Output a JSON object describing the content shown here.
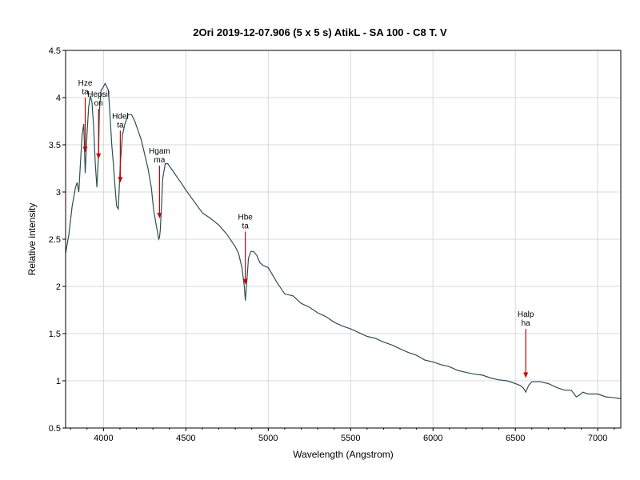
{
  "chart_data": {
    "type": "line",
    "title": "2Ori   2019-12-07.906   (5 x 5 s)  AtikL - SA 100 - C8 T. V",
    "xlabel": "Wavelength (Angstrom)",
    "ylabel": "Relative intensity",
    "xlim": [
      3770,
      7140
    ],
    "ylim": [
      0.5,
      4.5
    ],
    "x_ticks": [
      4000,
      4500,
      5000,
      5500,
      6000,
      6500,
      7000
    ],
    "y_ticks": [
      0.5,
      1,
      1.5,
      2,
      2.5,
      3,
      3.5,
      4,
      4.5
    ],
    "grid": true,
    "line_color": "#2f4f4f",
    "annotation_color": "#cc0000",
    "series": [
      {
        "x": [
          3770,
          3790,
          3810,
          3830,
          3840,
          3850,
          3860,
          3870,
          3880,
          3889,
          3900,
          3910,
          3920,
          3930,
          3940,
          3950,
          3960,
          3970,
          3975,
          3985,
          3995,
          4010,
          4030,
          4040,
          4050,
          4060,
          4070,
          4080,
          4090,
          4102,
          4115,
          4130,
          4150,
          4170,
          4190,
          4210,
          4230,
          4250,
          4270,
          4290,
          4305,
          4320,
          4335,
          4340,
          4345,
          4360,
          4375,
          4390,
          4410,
          4430,
          4450,
          4470,
          4500,
          4550,
          4600,
          4650,
          4700,
          4750,
          4800,
          4820,
          4840,
          4855,
          4861,
          4870,
          4880,
          4895,
          4910,
          4930,
          4950,
          4970,
          5000,
          5050,
          5100,
          5150,
          5200,
          5250,
          5300,
          5350,
          5400,
          5450,
          5500,
          5550,
          5600,
          5650,
          5700,
          5750,
          5800,
          5850,
          5900,
          5950,
          6000,
          6050,
          6100,
          6150,
          6200,
          6250,
          6300,
          6350,
          6400,
          6450,
          6500,
          6530,
          6550,
          6563,
          6580,
          6600,
          6650,
          6700,
          6750,
          6800,
          6840,
          6870,
          6890,
          6910,
          6940,
          6970,
          7000,
          7050,
          7100,
          7140
        ],
        "y": [
          2.35,
          2.55,
          2.85,
          3.05,
          3.1,
          3.0,
          3.3,
          3.6,
          3.72,
          3.2,
          3.62,
          3.9,
          4.02,
          3.95,
          3.7,
          3.3,
          3.05,
          3.4,
          3.85,
          4.08,
          4.1,
          4.15,
          4.08,
          3.8,
          3.5,
          3.3,
          3.05,
          2.85,
          2.82,
          3.3,
          3.6,
          3.72,
          3.82,
          3.82,
          3.75,
          3.65,
          3.55,
          3.4,
          3.25,
          3.05,
          2.8,
          2.65,
          2.5,
          2.52,
          2.6,
          3.15,
          3.3,
          3.3,
          3.25,
          3.2,
          3.15,
          3.1,
          3.02,
          2.9,
          2.78,
          2.72,
          2.65,
          2.55,
          2.42,
          2.35,
          2.2,
          2.0,
          1.85,
          2.05,
          2.3,
          2.37,
          2.37,
          2.33,
          2.25,
          2.22,
          2.2,
          2.05,
          1.92,
          1.9,
          1.82,
          1.78,
          1.72,
          1.68,
          1.62,
          1.58,
          1.55,
          1.51,
          1.47,
          1.45,
          1.41,
          1.38,
          1.34,
          1.3,
          1.27,
          1.22,
          1.2,
          1.17,
          1.15,
          1.11,
          1.09,
          1.07,
          1.06,
          1.03,
          1.01,
          1.0,
          0.97,
          0.95,
          0.92,
          0.88,
          0.95,
          0.99,
          0.99,
          0.97,
          0.93,
          0.9,
          0.9,
          0.83,
          0.85,
          0.88,
          0.86,
          0.86,
          0.86,
          0.83,
          0.82,
          0.81
        ]
      }
    ],
    "annotations": [
      {
        "text": "Hze\nta",
        "x": 3889,
        "y_tip": 3.42,
        "y_top": 4.0
      },
      {
        "text": "Hepsil\non",
        "x": 3970,
        "y_tip": 3.35,
        "y_top": 3.88
      },
      {
        "text": "Hdel\nta",
        "x": 4102,
        "y_tip": 3.1,
        "y_top": 3.65
      },
      {
        "text": "Hgam\nma",
        "x": 4340,
        "y_tip": 2.72,
        "y_top": 3.28
      },
      {
        "text": "Hbe\nta",
        "x": 4861,
        "y_tip": 2.02,
        "y_top": 2.58
      },
      {
        "text": "Halp\nha",
        "x": 6563,
        "y_tip": 1.03,
        "y_top": 1.55
      }
    ]
  }
}
